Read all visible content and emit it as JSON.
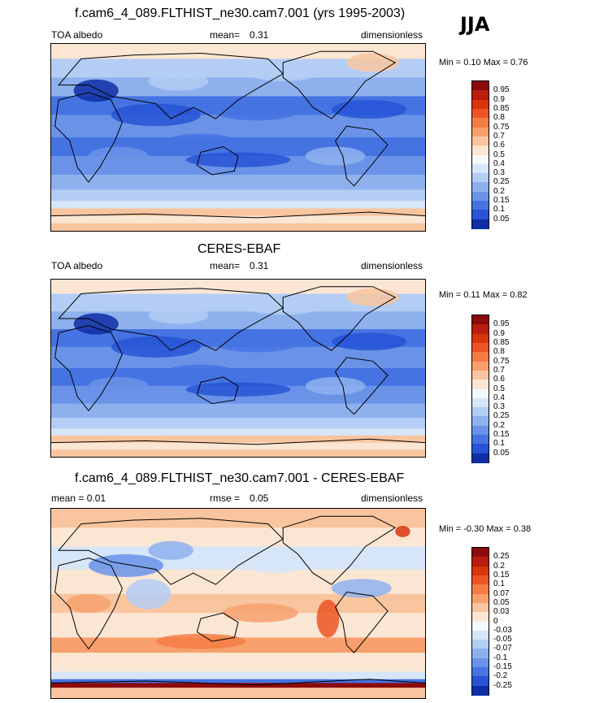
{
  "season": "JJA",
  "panels": [
    {
      "title": "f.cam6_4_089.FLTHIST_ne30.cam7.001 (yrs 1995-2003)",
      "left": "TOA albedo",
      "mid_label": "mean=",
      "mid_value": "0.31",
      "right": "dimensionless",
      "minmax": "Min =  0.10 Max =  0.76",
      "levels": [
        "0.95",
        "0.9",
        "0.85",
        "0.8",
        "0.75",
        "0.7",
        "0.6",
        "0.5",
        "0.4",
        "0.3",
        "0.25",
        "0.2",
        "0.15",
        "0.1",
        "0.05"
      ],
      "colors": [
        "#8c0a0a",
        "#b81d0f",
        "#d9340e",
        "#ec5523",
        "#f47c45",
        "#f7a06d",
        "#f9c59f",
        "#fbe6d4",
        "#f5f8fc",
        "#d7e5f8",
        "#b4cdf4",
        "#8eb1ee",
        "#6a93e8",
        "#4573e2",
        "#2753d6",
        "#0e2ea6"
      ]
    },
    {
      "title": "CERES-EBAF",
      "left": "TOA albedo",
      "mid_label": "mean=",
      "mid_value": "0.31",
      "right": "dimensionless",
      "minmax": "Min =  0.11 Max =  0.82",
      "levels": [
        "0.95",
        "0.9",
        "0.85",
        "0.8",
        "0.75",
        "0.7",
        "0.6",
        "0.5",
        "0.4",
        "0.3",
        "0.25",
        "0.2",
        "0.15",
        "0.1",
        "0.05"
      ],
      "colors": [
        "#8c0a0a",
        "#b81d0f",
        "#d9340e",
        "#ec5523",
        "#f47c45",
        "#f7a06d",
        "#f9c59f",
        "#fbe6d4",
        "#f5f8fc",
        "#d7e5f8",
        "#b4cdf4",
        "#8eb1ee",
        "#6a93e8",
        "#4573e2",
        "#2753d6",
        "#0e2ea6"
      ]
    },
    {
      "title": "f.cam6_4_089.FLTHIST_ne30.cam7.001 - CERES-EBAF",
      "left": "mean =   0.01",
      "mid_label": "rmse =",
      "mid_value": "0.05",
      "right": "dimensionless",
      "minmax": "Min =  -0.30 Max =  0.38",
      "levels": [
        "0.25",
        "0.2",
        "0.15",
        "0.1",
        "0.07",
        "0.05",
        "0.03",
        "0",
        "-0.03",
        "-0.05",
        "-0.07",
        "-0.1",
        "-0.15",
        "-0.2",
        "-0.25"
      ],
      "colors": [
        "#8c0a0a",
        "#b81d0f",
        "#d9340e",
        "#ec5523",
        "#f47c45",
        "#f7a06d",
        "#f9c59f",
        "#fbe6d4",
        "#f5f8fc",
        "#d7e5f8",
        "#b4cdf4",
        "#8eb1ee",
        "#6a93e8",
        "#4573e2",
        "#2753d6",
        "#0e2ea6"
      ]
    }
  ]
}
